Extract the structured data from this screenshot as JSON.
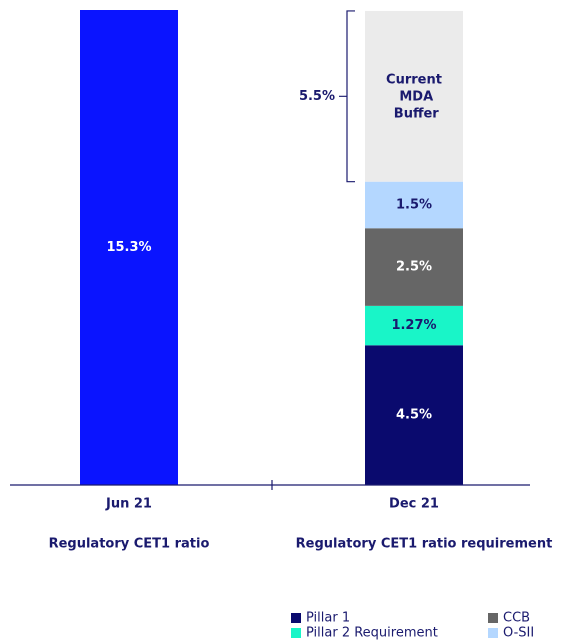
{
  "chart_data": {
    "type": "stacked_bar",
    "categories": [
      "Jun 21",
      "Dec 21"
    ],
    "category_subtitles": [
      "Regulatory CET1 ratio",
      "Regulatory CET1 ratio requirement"
    ],
    "ylim": [
      0,
      15.3
    ],
    "series": [
      {
        "color": "#0a14ff",
        "values": [
          15.3,
          null
        ],
        "value_labels": [
          "15.3%",
          null
        ]
      },
      {
        "name": "Pillar 1",
        "color": "#0a0a6e",
        "values": [
          null,
          4.5
        ],
        "value_labels": [
          null,
          "4.5%"
        ]
      },
      {
        "name": "Pillar 2 Requirement",
        "color": "#19f5c8",
        "values": [
          null,
          1.27
        ],
        "value_labels": [
          null,
          "1.27%"
        ]
      },
      {
        "name": "CCB",
        "color": "#666666",
        "values": [
          null,
          2.5
        ],
        "value_labels": [
          null,
          "2.5%"
        ]
      },
      {
        "name": "O-SII",
        "color": "#b4d7ff",
        "values": [
          null,
          1.5
        ],
        "value_labels": [
          null,
          "1.5%"
        ]
      },
      {
        "name": "Current MDA Buffer",
        "color": "#ebebeb",
        "values": [
          null,
          5.5
        ],
        "value_labels": [
          null,
          "5.5%"
        ],
        "in_legend": false,
        "label_outside": true
      }
    ],
    "legend": "bottom-right"
  }
}
